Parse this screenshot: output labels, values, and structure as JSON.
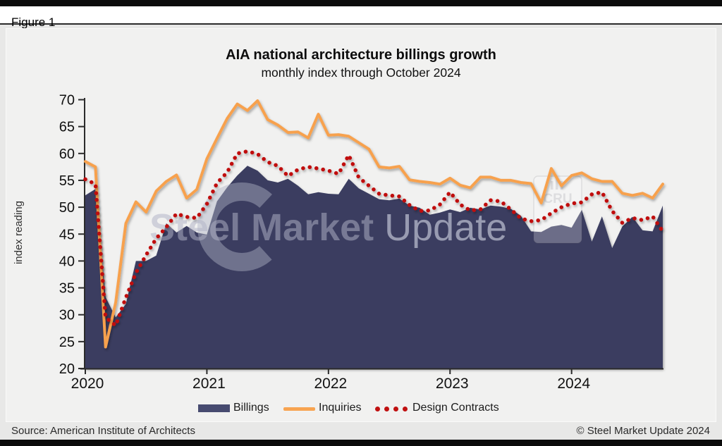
{
  "page": {
    "figure_label": "Figure 1"
  },
  "chart": {
    "title": "AIA national architecture billings growth",
    "subtitle": "monthly index through October 2024",
    "y_axis_title": "index reading"
  },
  "watermark": {
    "text_bold": "Steel Market",
    "text_light": "Update",
    "badge_text": "CRU"
  },
  "legend": {
    "items": [
      {
        "label": "Billings",
        "type": "area",
        "color": "#474b70"
      },
      {
        "label": "Inquiries",
        "type": "line",
        "color": "#f8a451"
      },
      {
        "label": "Design Contracts",
        "type": "dots",
        "color": "#c01010"
      }
    ]
  },
  "footer": {
    "source": "Source: American Institute of Architects",
    "copyright": "© Steel Market Update 2024"
  },
  "chart_data": {
    "type": "area+line",
    "title": "AIA national architecture billings growth",
    "subtitle": "monthly index through October 2024",
    "ylabel": "index reading",
    "ylim": [
      20,
      70
    ],
    "y_ticks": [
      20,
      25,
      30,
      35,
      40,
      45,
      50,
      55,
      60,
      65,
      70
    ],
    "reference_line": 50,
    "grid": false,
    "legend_position": "bottom",
    "x_start": "2020-01",
    "x_end": "2024-10",
    "year_labels": [
      "2020",
      "2021",
      "2022",
      "2023",
      "2024"
    ],
    "year_tick_month_indices": [
      0,
      12,
      24,
      36,
      48
    ],
    "series": [
      {
        "name": "Billings",
        "style": "area",
        "color": "#3a3e61",
        "values": [
          52.2,
          53.4,
          33.3,
          29.5,
          32,
          40,
          40,
          41,
          47,
          45.3,
          46.5,
          45.3,
          44.9,
          51.1,
          53.7,
          55.9,
          57.7,
          56.8,
          55,
          54.6,
          55.3,
          54,
          52.4,
          52.8,
          52.5,
          52.4,
          55.3,
          53.5,
          52.5,
          51.5,
          51.3,
          51.6,
          50.3,
          49.9,
          48.6,
          49,
          49.6,
          49.1,
          49.9,
          49.6,
          50.3,
          50.1,
          49.7,
          48.4,
          45.5,
          45.4,
          46.4,
          46.7,
          46.2,
          49.5,
          43.6,
          48.3,
          42.4,
          46.4,
          48.2,
          45.7,
          45.5,
          50.3
        ]
      },
      {
        "name": "Inquiries",
        "style": "line",
        "color": "#f7a14e",
        "values": [
          58.5,
          57.5,
          24,
          32.3,
          47,
          51,
          49.1,
          53,
          54.8,
          56,
          51.7,
          53.3,
          59,
          62.8,
          66.5,
          69.2,
          68,
          69.8,
          66.3,
          65.3,
          63.9,
          64,
          62.9,
          67.3,
          63.4,
          63.5,
          63.2,
          62,
          60.8,
          57.5,
          57.3,
          57.6,
          55.1,
          54.8,
          54.6,
          54.3,
          55.4,
          54.1,
          53.6,
          55.6,
          55.6,
          55,
          55,
          54.6,
          54.4,
          50.8,
          57.2,
          54,
          55.9,
          56.4,
          55.3,
          54.8,
          54.8,
          52.6,
          52.2,
          52.6,
          51.7,
          54.3
        ]
      },
      {
        "name": "Design Contracts",
        "style": "dotted",
        "color": "#c01010",
        "values": [
          55.2,
          54.3,
          29.5,
          28,
          33.2,
          37.8,
          41.1,
          44.2,
          46.3,
          48.8,
          48.2,
          48,
          50.6,
          54.5,
          56.5,
          60,
          60.4,
          59.9,
          58.4,
          57.7,
          55.8,
          57,
          57.5,
          57.2,
          56.8,
          56.2,
          59.7,
          55.5,
          54,
          52.5,
          52.2,
          52,
          50.4,
          49.3,
          49.4,
          50.5,
          52.8,
          50.5,
          49.4,
          49.6,
          51.3,
          51.1,
          49.6,
          47.9,
          47.4,
          47.6,
          48.9,
          50,
          50.7,
          50.9,
          52.4,
          52.8,
          49.3,
          47.1,
          48,
          47.6,
          48.3,
          45.5
        ]
      }
    ]
  }
}
